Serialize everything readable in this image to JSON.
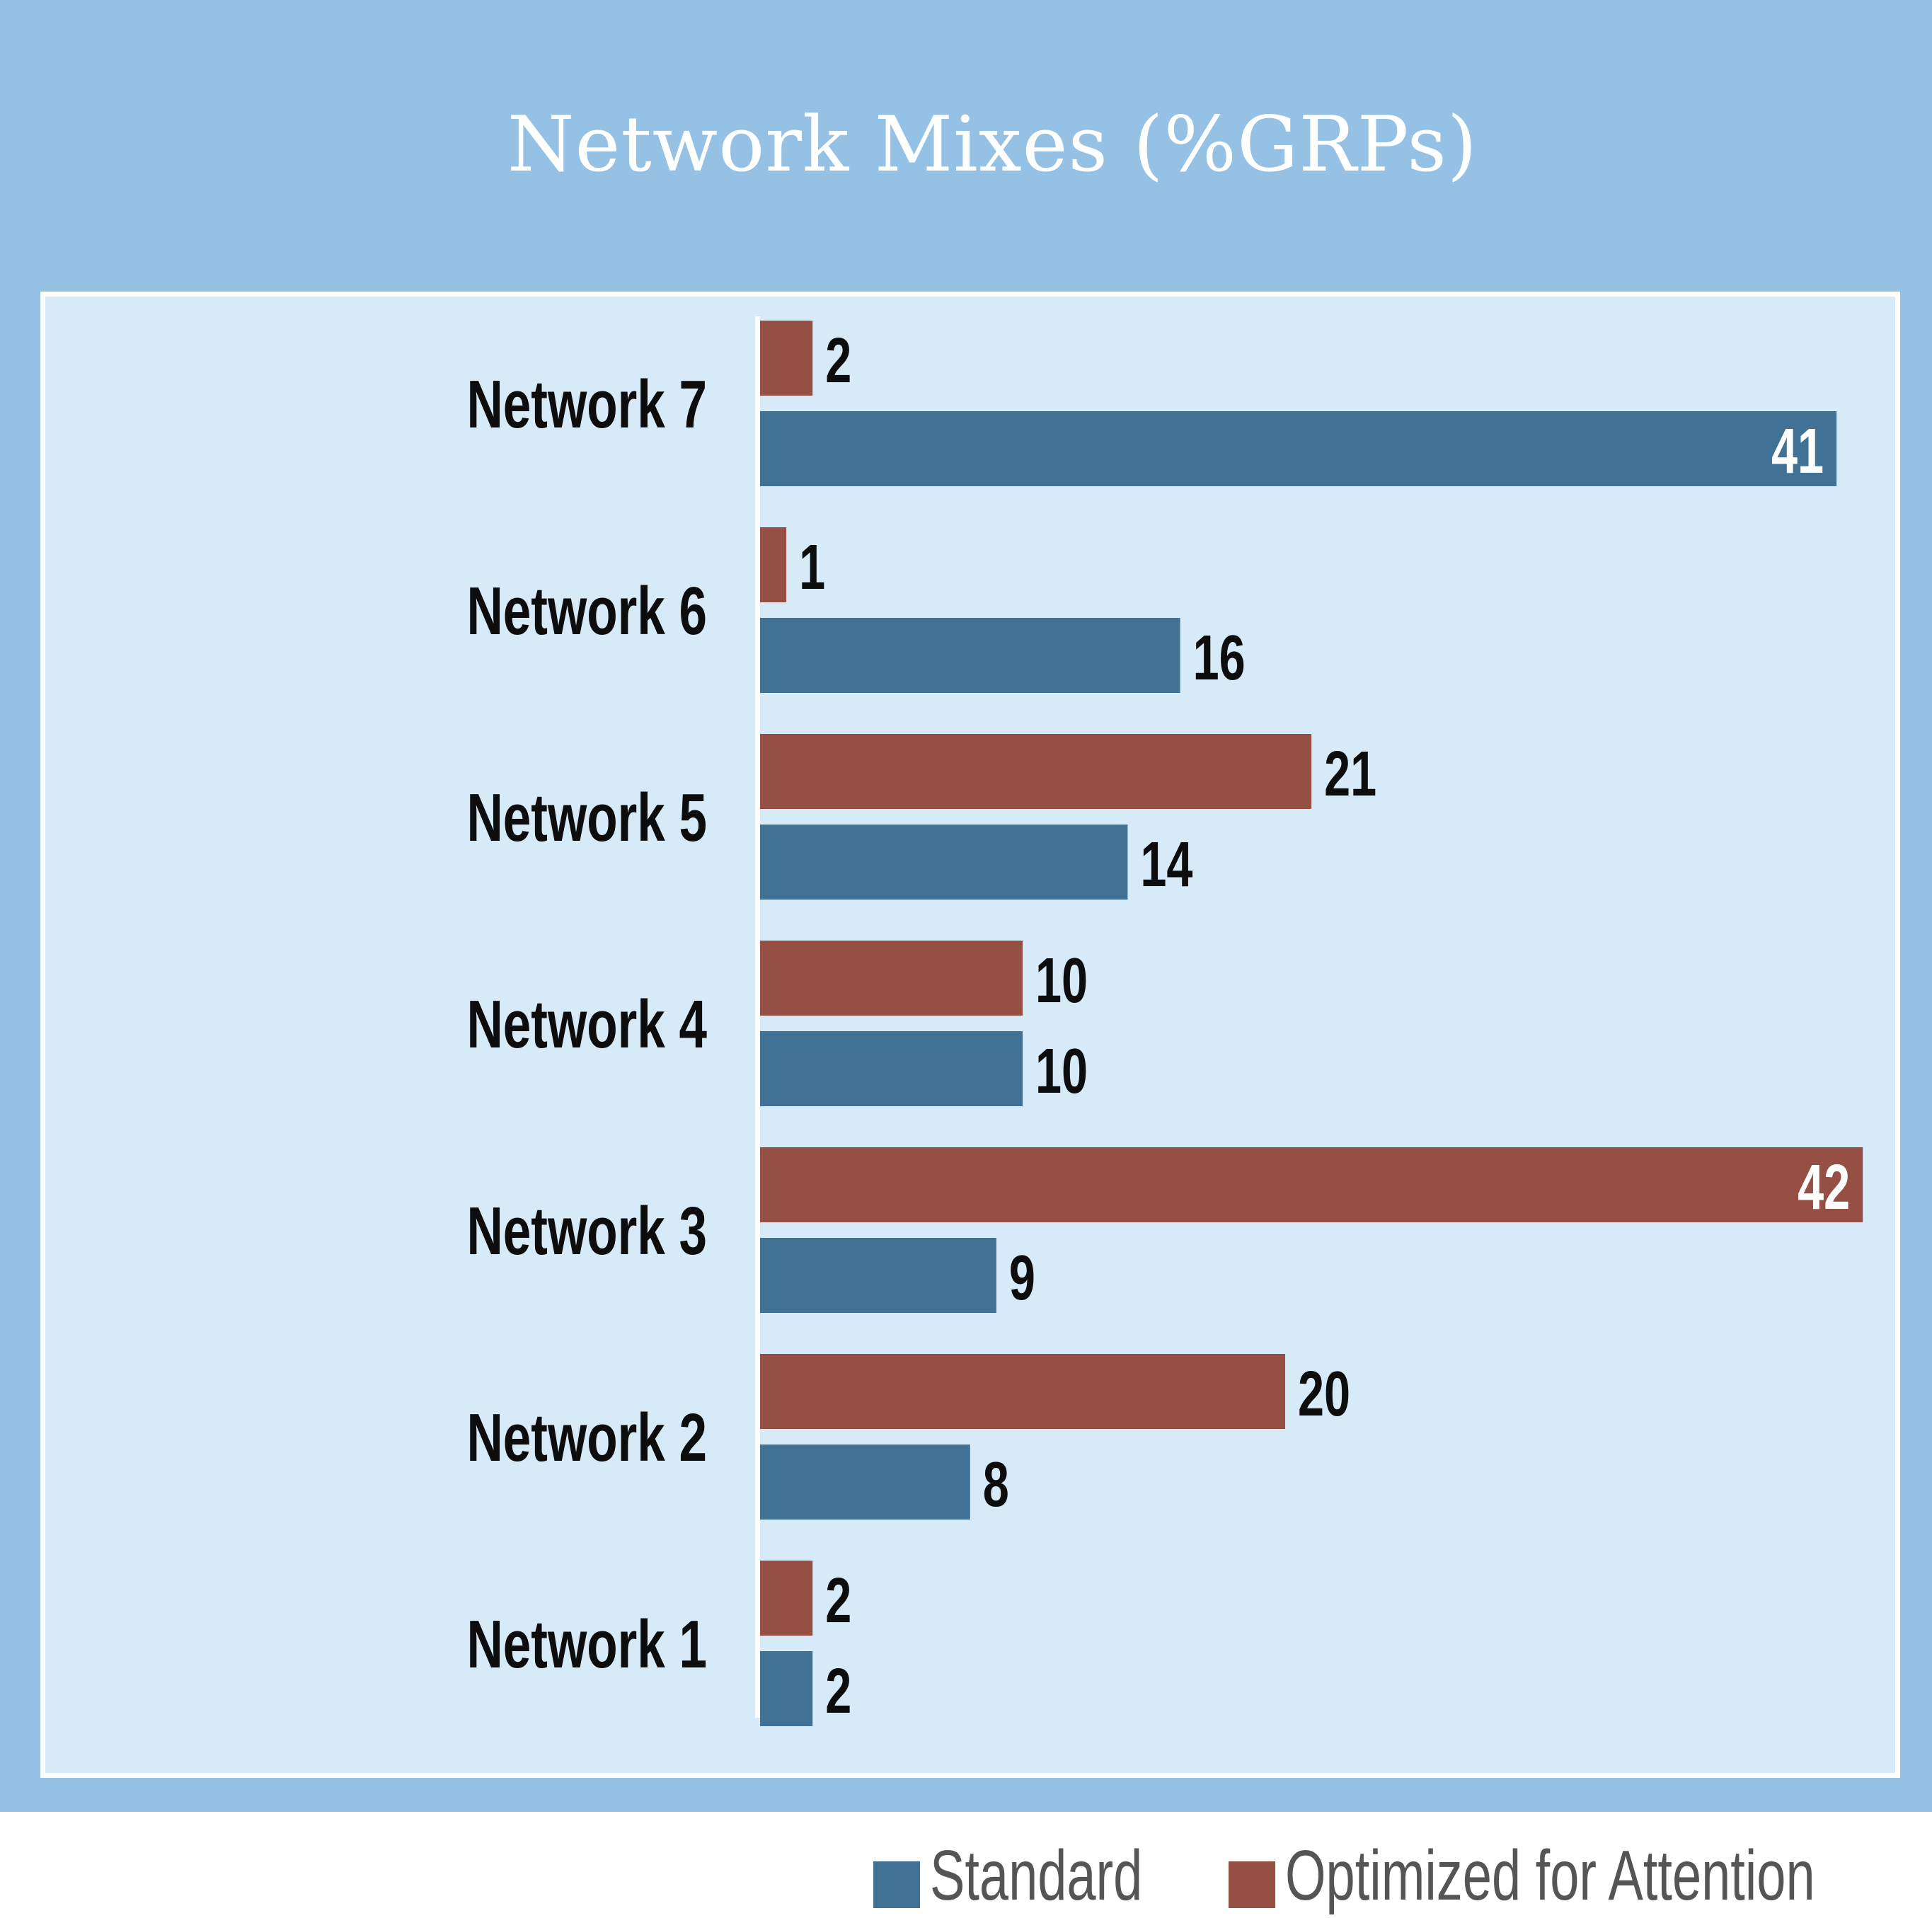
{
  "colors": {
    "outer_bg": "#94c1e4",
    "panel_bg": "#d7eaf8",
    "standard": "#417194",
    "optimized": "#954f43",
    "label_dark": "#0d0d0d",
    "label_light": "#ffffff",
    "legend_text": "#555555"
  },
  "chart_data": {
    "type": "bar",
    "orientation": "horizontal",
    "title": "Network Mixes (%GRPs)",
    "categories": [
      "Network 7",
      "Network 6",
      "Network 5",
      "Network 4",
      "Network 3",
      "Network 2",
      "Network 1"
    ],
    "series": [
      {
        "name": "Optimized for Attention",
        "values": [
          2,
          1,
          21,
          10,
          42,
          20,
          2
        ]
      },
      {
        "name": "Standard",
        "values": [
          41,
          16,
          14,
          10,
          9,
          8,
          2
        ]
      }
    ],
    "xlim": [
      0,
      42
    ],
    "grid": false,
    "legend": "bottom-right"
  },
  "legend": [
    {
      "label": "Standard",
      "icon": "legend-swatch-standard"
    },
    {
      "label": "Optimized for Attention",
      "icon": "legend-swatch-optimized"
    }
  ]
}
